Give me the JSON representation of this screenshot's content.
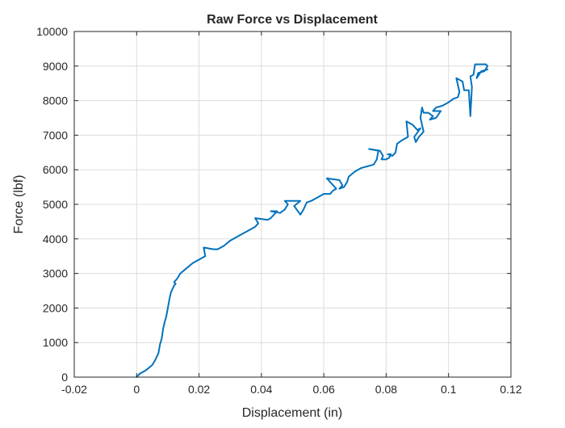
{
  "chart_data": {
    "type": "line",
    "title": "Raw Force vs Displacement",
    "xlabel": "Displacement (in)",
    "ylabel": "Force (lbf)",
    "xlim": [
      -0.02,
      0.12
    ],
    "ylim": [
      0,
      10000
    ],
    "x_ticks": [
      -0.02,
      0,
      0.02,
      0.04,
      0.06,
      0.08,
      0.1,
      0.12
    ],
    "x_tick_labels": [
      "-0.02",
      "0",
      "0.02",
      "0.04",
      "0.06",
      "0.08",
      "0.1",
      "0.12"
    ],
    "y_ticks": [
      0,
      1000,
      2000,
      3000,
      4000,
      5000,
      6000,
      7000,
      8000,
      9000,
      10000
    ],
    "y_tick_labels": [
      "0",
      "1000",
      "2000",
      "3000",
      "4000",
      "5000",
      "6000",
      "7000",
      "8000",
      "9000",
      "10000"
    ],
    "grid": true,
    "series_color": "#0072BD",
    "series": [
      {
        "points": [
          [
            0,
            0
          ],
          [
            0.001,
            100
          ],
          [
            0.003,
            200
          ],
          [
            0.005,
            350
          ],
          [
            0.006,
            500
          ],
          [
            0.007,
            700
          ],
          [
            0.0075,
            950
          ],
          [
            0.008,
            1100
          ],
          [
            0.0085,
            1400
          ],
          [
            0.009,
            1600
          ],
          [
            0.0095,
            1750
          ],
          [
            0.01,
            2000
          ],
          [
            0.0105,
            2250
          ],
          [
            0.011,
            2450
          ],
          [
            0.012,
            2650
          ],
          [
            0.0125,
            2700
          ],
          [
            0.012,
            2750
          ],
          [
            0.013,
            2850
          ],
          [
            0.014,
            3000
          ],
          [
            0.016,
            3150
          ],
          [
            0.018,
            3300
          ],
          [
            0.02,
            3400
          ],
          [
            0.022,
            3500
          ],
          [
            0.0215,
            3750
          ],
          [
            0.0245,
            3700
          ],
          [
            0.026,
            3700
          ],
          [
            0.028,
            3800
          ],
          [
            0.03,
            3950
          ],
          [
            0.032,
            4050
          ],
          [
            0.034,
            4150
          ],
          [
            0.036,
            4250
          ],
          [
            0.038,
            4350
          ],
          [
            0.039,
            4450
          ],
          [
            0.038,
            4600
          ],
          [
            0.042,
            4550
          ],
          [
            0.043,
            4600
          ],
          [
            0.044,
            4700
          ],
          [
            0.045,
            4800
          ],
          [
            0.043,
            4800
          ],
          [
            0.046,
            4750
          ],
          [
            0.0475,
            4850
          ],
          [
            0.0485,
            5000
          ],
          [
            0.0475,
            5100
          ],
          [
            0.0525,
            5100
          ],
          [
            0.0505,
            4950
          ],
          [
            0.0525,
            4700
          ],
          [
            0.0535,
            4850
          ],
          [
            0.0545,
            5050
          ],
          [
            0.056,
            5100
          ],
          [
            0.058,
            5200
          ],
          [
            0.06,
            5300
          ],
          [
            0.062,
            5300
          ],
          [
            0.063,
            5400
          ],
          [
            0.064,
            5450
          ],
          [
            0.061,
            5750
          ],
          [
            0.065,
            5700
          ],
          [
            0.066,
            5550
          ],
          [
            0.065,
            5450
          ],
          [
            0.0665,
            5500
          ],
          [
            0.0675,
            5650
          ],
          [
            0.068,
            5800
          ],
          [
            0.07,
            5950
          ],
          [
            0.072,
            6050
          ],
          [
            0.074,
            6100
          ],
          [
            0.076,
            6150
          ],
          [
            0.077,
            6300
          ],
          [
            0.0775,
            6550
          ],
          [
            0.0745,
            6600
          ],
          [
            0.078,
            6550
          ],
          [
            0.079,
            6400
          ],
          [
            0.0785,
            6300
          ],
          [
            0.08,
            6300
          ],
          [
            0.081,
            6350
          ],
          [
            0.0815,
            6450
          ],
          [
            0.0805,
            6450
          ],
          [
            0.082,
            6400
          ],
          [
            0.083,
            6500
          ],
          [
            0.0835,
            6750
          ],
          [
            0.085,
            6850
          ],
          [
            0.086,
            6900
          ],
          [
            0.087,
            6950
          ],
          [
            0.0865,
            7400
          ],
          [
            0.0885,
            7300
          ],
          [
            0.09,
            7150
          ],
          [
            0.091,
            7200
          ],
          [
            0.089,
            6950
          ],
          [
            0.0895,
            6800
          ],
          [
            0.0905,
            6950
          ],
          [
            0.092,
            7100
          ],
          [
            0.091,
            7500
          ],
          [
            0.0915,
            7800
          ],
          [
            0.092,
            7650
          ],
          [
            0.0935,
            7650
          ],
          [
            0.095,
            7550
          ],
          [
            0.094,
            7450
          ],
          [
            0.096,
            7500
          ],
          [
            0.0975,
            7700
          ],
          [
            0.095,
            7700
          ],
          [
            0.096,
            7800
          ],
          [
            0.098,
            7850
          ],
          [
            0.1,
            7950
          ],
          [
            0.1015,
            8050
          ],
          [
            0.103,
            8100
          ],
          [
            0.1035,
            8250
          ],
          [
            0.1025,
            8650
          ],
          [
            0.1045,
            8550
          ],
          [
            0.105,
            8300
          ],
          [
            0.1065,
            8300
          ],
          [
            0.107,
            7550
          ],
          [
            0.1075,
            8400
          ],
          [
            0.107,
            8700
          ],
          [
            0.108,
            8750
          ],
          [
            0.1085,
            9050
          ],
          [
            0.11,
            9050
          ],
          [
            0.112,
            9050
          ],
          [
            0.1125,
            9000
          ],
          [
            0.1115,
            8850
          ],
          [
            0.1095,
            8800
          ],
          [
            0.109,
            8650
          ],
          [
            0.1105,
            8850
          ],
          [
            0.1125,
            8900
          ]
        ]
      }
    ]
  }
}
